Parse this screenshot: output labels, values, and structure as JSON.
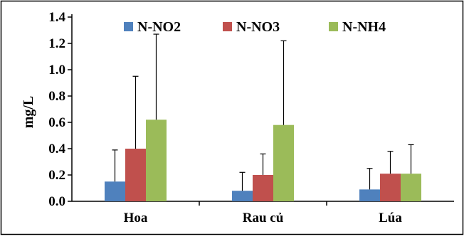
{
  "chart_data": {
    "type": "bar",
    "title": "",
    "xlabel": "",
    "ylabel": "mg/L",
    "ylim": [
      0,
      1.4
    ],
    "yticks": [
      "0.0",
      "0.2",
      "0.4",
      "0.6",
      "0.8",
      "1.0",
      "1.2",
      "1.4"
    ],
    "categories": [
      "Hoa",
      "Rau củ",
      "Lúa"
    ],
    "series": [
      {
        "name": "N-NO2",
        "color": "#4F81BD",
        "values": [
          0.15,
          0.08,
          0.09
        ],
        "errors": [
          0.24,
          0.14,
          0.16
        ]
      },
      {
        "name": "N-NO3",
        "color": "#C0504D",
        "values": [
          0.4,
          0.2,
          0.21
        ],
        "errors": [
          0.55,
          0.16,
          0.17
        ]
      },
      {
        "name": "N-NH4",
        "color": "#9BBB59",
        "values": [
          0.62,
          0.58,
          0.21
        ],
        "errors": [
          0.65,
          0.64,
          0.22
        ]
      }
    ],
    "error_bars": "upper",
    "grid": false,
    "legend_position": "top"
  }
}
